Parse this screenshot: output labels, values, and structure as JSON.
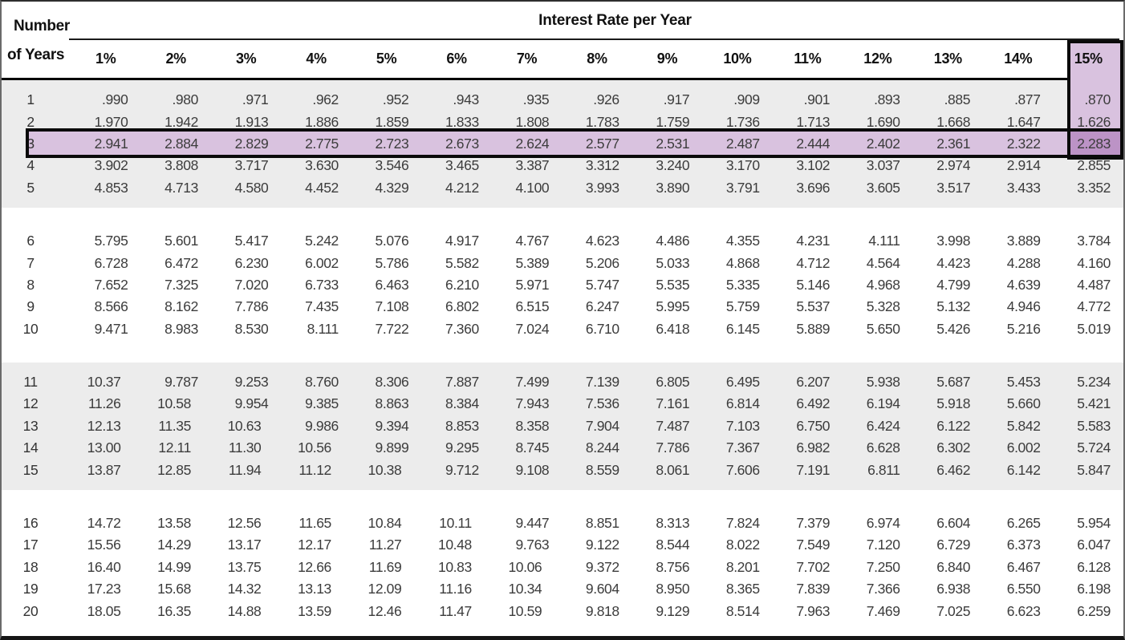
{
  "header": {
    "corner_line1": "Number",
    "corner_line2": "of Years",
    "title": "Interest Rate per Year"
  },
  "highlight": {
    "row_year": "3",
    "column": "15%",
    "intersection_value": "2.283",
    "colors": {
      "light_fill": "#d9c2df",
      "dark_fill": "#bc93c6",
      "box_border": "#0a0a0a",
      "shaded_band": "#ececec"
    }
  },
  "chart_data": {
    "type": "table",
    "title": "Interest Rate per Year",
    "row_label_header": "Number of Years",
    "columns": [
      "1%",
      "2%",
      "3%",
      "4%",
      "5%",
      "6%",
      "7%",
      "8%",
      "9%",
      "10%",
      "11%",
      "12%",
      "13%",
      "14%",
      "15%"
    ],
    "shaded_group_pattern": "rows 1-5 and 11-15 shaded gray, 5-row bands separated by gaps",
    "rows": [
      {
        "year": "1",
        "values": [
          ".990",
          ".980",
          ".971",
          ".962",
          ".952",
          ".943",
          ".935",
          ".926",
          ".917",
          ".909",
          ".901",
          ".893",
          ".885",
          ".877",
          ".870"
        ]
      },
      {
        "year": "2",
        "values": [
          "1.970",
          "1.942",
          "1.913",
          "1.886",
          "1.859",
          "1.833",
          "1.808",
          "1.783",
          "1.759",
          "1.736",
          "1.713",
          "1.690",
          "1.668",
          "1.647",
          "1.626"
        ]
      },
      {
        "year": "3",
        "values": [
          "2.941",
          "2.884",
          "2.829",
          "2.775",
          "2.723",
          "2.673",
          "2.624",
          "2.577",
          "2.531",
          "2.487",
          "2.444",
          "2.402",
          "2.361",
          "2.322",
          "2.283"
        ]
      },
      {
        "year": "4",
        "values": [
          "3.902",
          "3.808",
          "3.717",
          "3.630",
          "3.546",
          "3.465",
          "3.387",
          "3.312",
          "3.240",
          "3.170",
          "3.102",
          "3.037",
          "2.974",
          "2.914",
          "2.855"
        ]
      },
      {
        "year": "5",
        "values": [
          "4.853",
          "4.713",
          "4.580",
          "4.452",
          "4.329",
          "4.212",
          "4.100",
          "3.993",
          "3.890",
          "3.791",
          "3.696",
          "3.605",
          "3.517",
          "3.433",
          "3.352"
        ]
      },
      {
        "year": "6",
        "values": [
          "5.795",
          "5.601",
          "5.417",
          "5.242",
          "5.076",
          "4.917",
          "4.767",
          "4.623",
          "4.486",
          "4.355",
          "4.231",
          "4.111",
          "3.998",
          "3.889",
          "3.784"
        ]
      },
      {
        "year": "7",
        "values": [
          "6.728",
          "6.472",
          "6.230",
          "6.002",
          "5.786",
          "5.582",
          "5.389",
          "5.206",
          "5.033",
          "4.868",
          "4.712",
          "4.564",
          "4.423",
          "4.288",
          "4.160"
        ]
      },
      {
        "year": "8",
        "values": [
          "7.652",
          "7.325",
          "7.020",
          "6.733",
          "6.463",
          "6.210",
          "5.971",
          "5.747",
          "5.535",
          "5.335",
          "5.146",
          "4.968",
          "4.799",
          "4.639",
          "4.487"
        ]
      },
      {
        "year": "9",
        "values": [
          "8.566",
          "8.162",
          "7.786",
          "7.435",
          "7.108",
          "6.802",
          "6.515",
          "6.247",
          "5.995",
          "5.759",
          "5.537",
          "5.328",
          "5.132",
          "4.946",
          "4.772"
        ]
      },
      {
        "year": "10",
        "values": [
          "9.471",
          "8.983",
          "8.530",
          "8.111",
          "7.722",
          "7.360",
          "7.024",
          "6.710",
          "6.418",
          "6.145",
          "5.889",
          "5.650",
          "5.426",
          "5.216",
          "5.019"
        ]
      },
      {
        "year": "11",
        "values": [
          "10.37",
          "9.787",
          "9.253",
          "8.760",
          "8.306",
          "7.887",
          "7.499",
          "7.139",
          "6.805",
          "6.495",
          "6.207",
          "5.938",
          "5.687",
          "5.453",
          "5.234"
        ]
      },
      {
        "year": "12",
        "values": [
          "11.26",
          "10.58",
          "9.954",
          "9.385",
          "8.863",
          "8.384",
          "7.943",
          "7.536",
          "7.161",
          "6.814",
          "6.492",
          "6.194",
          "5.918",
          "5.660",
          "5.421"
        ]
      },
      {
        "year": "13",
        "values": [
          "12.13",
          "11.35",
          "10.63",
          "9.986",
          "9.394",
          "8.853",
          "8.358",
          "7.904",
          "7.487",
          "7.103",
          "6.750",
          "6.424",
          "6.122",
          "5.842",
          "5.583"
        ]
      },
      {
        "year": "14",
        "values": [
          "13.00",
          "12.11",
          "11.30",
          "10.56",
          "9.899",
          "9.295",
          "8.745",
          "8.244",
          "7.786",
          "7.367",
          "6.982",
          "6.628",
          "6.302",
          "6.002",
          "5.724"
        ]
      },
      {
        "year": "15",
        "values": [
          "13.87",
          "12.85",
          "11.94",
          "11.12",
          "10.38",
          "9.712",
          "9.108",
          "8.559",
          "8.061",
          "7.606",
          "7.191",
          "6.811",
          "6.462",
          "6.142",
          "5.847"
        ]
      },
      {
        "year": "16",
        "values": [
          "14.72",
          "13.58",
          "12.56",
          "11.65",
          "10.84",
          "10.11",
          "9.447",
          "8.851",
          "8.313",
          "7.824",
          "7.379",
          "6.974",
          "6.604",
          "6.265",
          "5.954"
        ]
      },
      {
        "year": "17",
        "values": [
          "15.56",
          "14.29",
          "13.17",
          "12.17",
          "11.27",
          "10.48",
          "9.763",
          "9.122",
          "8.544",
          "8.022",
          "7.549",
          "7.120",
          "6.729",
          "6.373",
          "6.047"
        ]
      },
      {
        "year": "18",
        "values": [
          "16.40",
          "14.99",
          "13.75",
          "12.66",
          "11.69",
          "10.83",
          "10.06",
          "9.372",
          "8.756",
          "8.201",
          "7.702",
          "7.250",
          "6.840",
          "6.467",
          "6.128"
        ]
      },
      {
        "year": "19",
        "values": [
          "17.23",
          "15.68",
          "14.32",
          "13.13",
          "12.09",
          "11.16",
          "10.34",
          "9.604",
          "8.950",
          "8.365",
          "7.839",
          "7.366",
          "6.938",
          "6.550",
          "6.198"
        ]
      },
      {
        "year": "20",
        "values": [
          "18.05",
          "16.35",
          "14.88",
          "13.59",
          "12.46",
          "11.47",
          "10.59",
          "9.818",
          "9.129",
          "8.514",
          "7.963",
          "7.469",
          "7.025",
          "6.623",
          "6.259"
        ]
      }
    ]
  }
}
